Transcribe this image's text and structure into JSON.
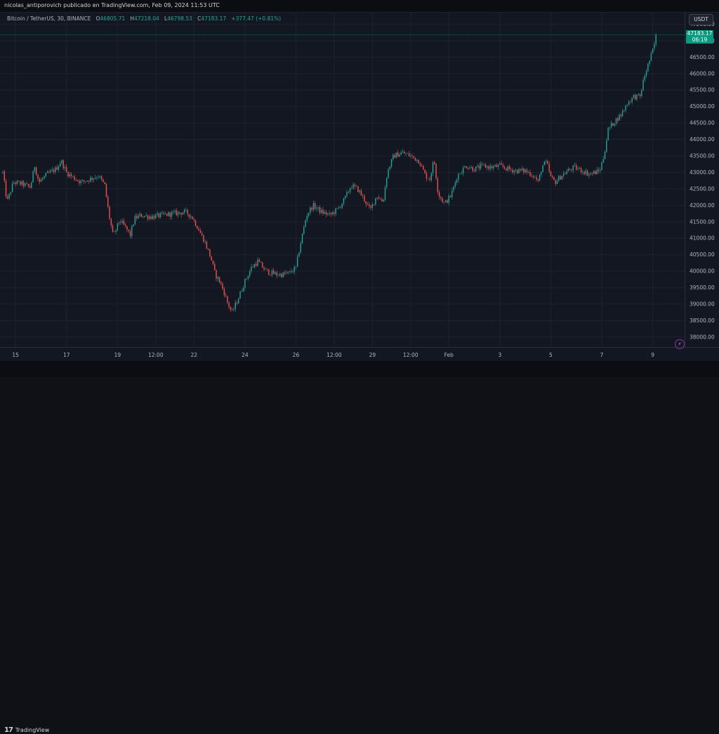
{
  "header": {
    "published_by": "nicolas_antiporovich publicado en TradingView.com, Feb 09, 2024 11:53 UTC"
  },
  "legend": {
    "symbol": "Bitcoin / TetherUS, 30, BINANCE",
    "open_label": "O",
    "open": "46805.71",
    "high_label": "H",
    "high": "47218.04",
    "low_label": "L",
    "low": "46798.53",
    "close_label": "C",
    "close": "47183.17",
    "change": "+377.47 (+0.81%)"
  },
  "currency_button": "USDT",
  "last_price": {
    "value": "47183.17",
    "countdown": "06:19"
  },
  "footer": {
    "brand": "TradingView",
    "logo_mark": "17"
  },
  "colors": {
    "up": "#26a69a",
    "down": "#ef5350",
    "background": "#131722",
    "grid": "#1e2230",
    "badge": "#089981"
  },
  "chart_data": {
    "type": "candlestick",
    "symbol": "Bitcoin / TetherUS",
    "interval": "30",
    "exchange": "BINANCE",
    "ylim": [
      37700,
      47850
    ],
    "y_ticks": [
      38000,
      38500,
      39000,
      39500,
      40000,
      40500,
      41000,
      41500,
      42000,
      42500,
      43000,
      43500,
      44000,
      44500,
      45000,
      45500,
      46000,
      46500,
      47000,
      47500
    ],
    "y_tick_labels": [
      "38000.00",
      "38500.00",
      "39000.00",
      "39500.00",
      "40000.00",
      "40500.00",
      "41000.00",
      "41500.00",
      "42000.00",
      "42500.00",
      "43000.00",
      "43500.00",
      "44000.00",
      "44500.00",
      "45000.00",
      "45500.00",
      "46000.00",
      "46500.00",
      "47000.00",
      "47500.00"
    ],
    "x_range_hours": [
      0,
      640
    ],
    "x_ticks": [
      {
        "label": "15",
        "hours": 12
      },
      {
        "label": "17",
        "hours": 60
      },
      {
        "label": "19",
        "hours": 108
      },
      {
        "label": "12:00",
        "hours": 144
      },
      {
        "label": "22",
        "hours": 180
      },
      {
        "label": "24",
        "hours": 228
      },
      {
        "label": "26",
        "hours": 276
      },
      {
        "label": "12:00",
        "hours": 312
      },
      {
        "label": "29",
        "hours": 348
      },
      {
        "label": "12:00",
        "hours": 384
      },
      {
        "label": "Feb",
        "hours": 420
      },
      {
        "label": "3",
        "hours": 468
      },
      {
        "label": "5",
        "hours": 516
      },
      {
        "label": "7",
        "hours": 564
      },
      {
        "label": "9",
        "hours": 612
      }
    ],
    "price_path": [
      [
        0,
        43000
      ],
      [
        4,
        42100
      ],
      [
        10,
        42700
      ],
      [
        18,
        42650
      ],
      [
        26,
        42550
      ],
      [
        30,
        43200
      ],
      [
        34,
        42700
      ],
      [
        42,
        42950
      ],
      [
        50,
        43100
      ],
      [
        55,
        43350
      ],
      [
        60,
        43000
      ],
      [
        66,
        42850
      ],
      [
        74,
        42700
      ],
      [
        82,
        42800
      ],
      [
        90,
        42900
      ],
      [
        96,
        42600
      ],
      [
        100,
        41700
      ],
      [
        104,
        41050
      ],
      [
        110,
        41550
      ],
      [
        116,
        41300
      ],
      [
        120,
        41100
      ],
      [
        124,
        41600
      ],
      [
        130,
        41700
      ],
      [
        140,
        41650
      ],
      [
        150,
        41700
      ],
      [
        160,
        41750
      ],
      [
        172,
        41800
      ],
      [
        178,
        41650
      ],
      [
        184,
        41300
      ],
      [
        190,
        40900
      ],
      [
        196,
        40400
      ],
      [
        200,
        39900
      ],
      [
        204,
        39700
      ],
      [
        208,
        39400
      ],
      [
        212,
        39000
      ],
      [
        216,
        38750
      ],
      [
        222,
        39200
      ],
      [
        228,
        39700
      ],
      [
        234,
        40100
      ],
      [
        240,
        40300
      ],
      [
        248,
        40000
      ],
      [
        258,
        39900
      ],
      [
        264,
        39900
      ],
      [
        270,
        39950
      ],
      [
        276,
        40100
      ],
      [
        280,
        40800
      ],
      [
        286,
        41700
      ],
      [
        292,
        42000
      ],
      [
        300,
        41800
      ],
      [
        308,
        41700
      ],
      [
        316,
        41900
      ],
      [
        322,
        42200
      ],
      [
        328,
        42600
      ],
      [
        334,
        42500
      ],
      [
        340,
        42200
      ],
      [
        346,
        41850
      ],
      [
        352,
        42300
      ],
      [
        358,
        42100
      ],
      [
        362,
        43000
      ],
      [
        368,
        43500
      ],
      [
        376,
        43600
      ],
      [
        384,
        43500
      ],
      [
        392,
        43350
      ],
      [
        398,
        42900
      ],
      [
        402,
        42800
      ],
      [
        406,
        43400
      ],
      [
        410,
        42350
      ],
      [
        416,
        42050
      ],
      [
        422,
        42300
      ],
      [
        428,
        42900
      ],
      [
        436,
        43200
      ],
      [
        444,
        43100
      ],
      [
        452,
        43200
      ],
      [
        460,
        43150
      ],
      [
        468,
        43200
      ],
      [
        476,
        43100
      ],
      [
        484,
        43050
      ],
      [
        492,
        43050
      ],
      [
        500,
        42900
      ],
      [
        504,
        42700
      ],
      [
        508,
        43200
      ],
      [
        512,
        43300
      ],
      [
        516,
        42850
      ],
      [
        520,
        42700
      ],
      [
        526,
        42900
      ],
      [
        532,
        43050
      ],
      [
        538,
        43150
      ],
      [
        546,
        43050
      ],
      [
        552,
        42950
      ],
      [
        558,
        43000
      ],
      [
        562,
        43050
      ],
      [
        566,
        43500
      ],
      [
        570,
        44300
      ],
      [
        576,
        44550
      ],
      [
        582,
        44750
      ],
      [
        588,
        45100
      ],
      [
        594,
        45300
      ],
      [
        600,
        45300
      ],
      [
        604,
        45900
      ],
      [
        608,
        46300
      ],
      [
        612,
        46700
      ],
      [
        616,
        47183.17
      ]
    ],
    "last_price": 47183.17,
    "last_price_label": "47183.17"
  }
}
